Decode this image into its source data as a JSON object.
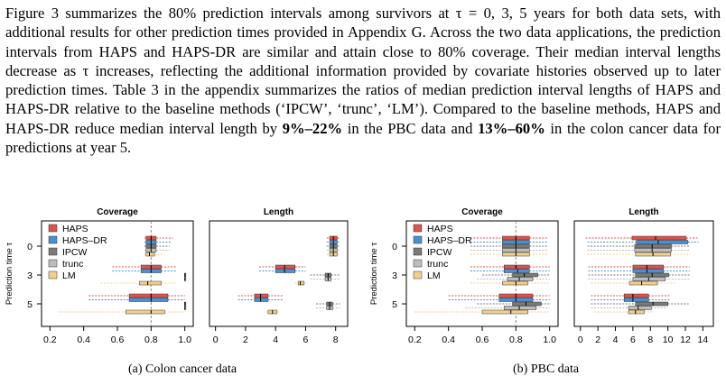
{
  "paragraph": {
    "text1": "Figure 3 summarizes the 80% prediction intervals among survivors at τ = 0, 3, 5 years for both data sets, with additional results for other prediction times provided in Appendix G. Across the two data applications, the prediction intervals from HAPS and HAPS-DR are similar and attain close to 80% coverage. Their median interval lengths decrease as τ increases, reflecting the additional information provided by covariate histories observed up to later prediction times. Table 3 in the appendix summarizes the ratios of median prediction interval lengths of HAPS and HAPS-DR relative to the baseline methods (‘IPCW’, ‘trunc’, ‘LM’). Compared to the baseline methods, HAPS and HAPS-DR reduce median interval length by ",
    "bold1": "9%–22%",
    "text2": " in the PBC data and ",
    "bold2": "13%–60%",
    "text3": " in the colon cancer data for predictions at year 5."
  },
  "captions": {
    "a": "(a) Colon cancer data",
    "b": "(b) PBC data"
  },
  "colors": {
    "HAPS": "#e0524c",
    "HAPS-DR": "#4a90d0",
    "IPCW": "#7a7a7a",
    "trunc": "#bdbdbd",
    "LM": "#f3cf8e"
  },
  "chart_data": [
    {
      "type": "boxplot",
      "title": "Coverage",
      "ylabel": "Prediction time τ",
      "yticks": [
        "0",
        "3",
        "5"
      ],
      "xticks": [
        "0.2",
        "0.4",
        "0.6",
        "0.8",
        "1.0"
      ],
      "xlim": [
        0.15,
        1.05
      ],
      "reference_line": 0.8,
      "legend": [
        "HAPS",
        "HAPS–DR",
        "IPCW",
        "trunc",
        "LM"
      ],
      "legend_position": "top-left",
      "groups": [
        {
          "tau": "0",
          "boxes": [
            {
              "method": "HAPS",
              "whisker": [
                0.76,
                0.93
              ],
              "q1": 0.77,
              "median": 0.8,
              "q3": 0.83
            },
            {
              "method": "HAPS-DR",
              "whisker": [
                0.76,
                0.92
              ],
              "q1": 0.77,
              "median": 0.8,
              "q3": 0.83
            },
            {
              "method": "IPCW",
              "whisker": [
                0.76,
                0.91
              ],
              "q1": 0.77,
              "median": 0.8,
              "q3": 0.83
            },
            {
              "method": "trunc",
              "whisker": [
                0.76,
                0.91
              ],
              "q1": 0.77,
              "median": 0.8,
              "q3": 0.83
            },
            {
              "method": "LM",
              "whisker": [
                0.76,
                0.88
              ],
              "q1": 0.77,
              "median": 0.79,
              "q3": 0.82
            }
          ]
        },
        {
          "tau": "3",
          "boxes": [
            {
              "method": "HAPS",
              "whisker": [
                0.57,
                0.95
              ],
              "q1": 0.74,
              "median": 0.8,
              "q3": 0.86
            },
            {
              "method": "HAPS-DR",
              "whisker": [
                0.57,
                0.95
              ],
              "q1": 0.74,
              "median": 0.8,
              "q3": 0.86
            },
            {
              "method": "IPCW",
              "whisker": [
                1.0,
                1.0
              ],
              "q1": 1.0,
              "median": 1.0,
              "q3": 1.0
            },
            {
              "method": "trunc",
              "whisker": [
                1.0,
                1.0
              ],
              "q1": 1.0,
              "median": 1.0,
              "q3": 1.0
            },
            {
              "method": "LM",
              "whisker": [
                0.5,
                0.95
              ],
              "q1": 0.73,
              "median": 0.78,
              "q3": 0.86
            }
          ]
        },
        {
          "tau": "5",
          "boxes": [
            {
              "method": "HAPS",
              "whisker": [
                0.43,
                1.0
              ],
              "q1": 0.67,
              "median": 0.8,
              "q3": 0.9
            },
            {
              "method": "HAPS-DR",
              "whisker": [
                0.43,
                1.0
              ],
              "q1": 0.67,
              "median": 0.8,
              "q3": 0.9
            },
            {
              "method": "IPCW",
              "whisker": [
                1.0,
                1.0
              ],
              "q1": 1.0,
              "median": 1.0,
              "q3": 1.0
            },
            {
              "method": "trunc",
              "whisker": [
                1.0,
                1.0
              ],
              "q1": 1.0,
              "median": 1.0,
              "q3": 1.0
            },
            {
              "method": "LM",
              "whisker": [
                0.25,
                1.0
              ],
              "q1": 0.65,
              "median": 0.8,
              "q3": 0.88
            }
          ]
        }
      ]
    },
    {
      "type": "boxplot",
      "title": "Length",
      "xticks": [
        "0",
        "2",
        "4",
        "6",
        "8"
      ],
      "xlim": [
        -0.4,
        8.8
      ],
      "groups": [
        {
          "tau": "0",
          "boxes": [
            {
              "method": "HAPS",
              "whisker": [
                7.4,
                8.3
              ],
              "q1": 7.6,
              "median": 7.85,
              "q3": 8.1
            },
            {
              "method": "HAPS-DR",
              "whisker": [
                7.4,
                8.3
              ],
              "q1": 7.6,
              "median": 7.85,
              "q3": 8.1
            },
            {
              "method": "IPCW",
              "whisker": [
                7.4,
                8.3
              ],
              "q1": 7.6,
              "median": 7.85,
              "q3": 8.1
            },
            {
              "method": "trunc",
              "whisker": [
                7.4,
                8.3
              ],
              "q1": 7.6,
              "median": 7.85,
              "q3": 8.1
            },
            {
              "method": "LM",
              "whisker": [
                7.4,
                8.3
              ],
              "q1": 7.6,
              "median": 7.85,
              "q3": 8.1
            }
          ]
        },
        {
          "tau": "3",
          "boxes": [
            {
              "method": "HAPS",
              "whisker": [
                2.9,
                6.0
              ],
              "q1": 4.0,
              "median": 4.6,
              "q3": 5.3
            },
            {
              "method": "HAPS-DR",
              "whisker": [
                2.9,
                6.0
              ],
              "q1": 4.0,
              "median": 4.6,
              "q3": 5.3
            },
            {
              "method": "IPCW",
              "whisker": [
                6.3,
                8.3
              ],
              "q1": 7.3,
              "median": 7.5,
              "q3": 7.7
            },
            {
              "method": "trunc",
              "whisker": [
                6.3,
                8.3
              ],
              "q1": 7.3,
              "median": 7.5,
              "q3": 7.7
            },
            {
              "method": "LM",
              "whisker": [
                5.3,
                6.1
              ],
              "q1": 5.5,
              "median": 5.65,
              "q3": 5.9
            }
          ]
        },
        {
          "tau": "5",
          "boxes": [
            {
              "method": "HAPS",
              "whisker": [
                1.5,
                4.5
              ],
              "q1": 2.6,
              "median": 3.0,
              "q3": 3.5
            },
            {
              "method": "HAPS-DR",
              "whisker": [
                1.5,
                4.5
              ],
              "q1": 2.6,
              "median": 3.0,
              "q3": 3.5
            },
            {
              "method": "IPCW",
              "whisker": [
                6.7,
                8.3
              ],
              "q1": 7.4,
              "median": 7.6,
              "q3": 7.8
            },
            {
              "method": "trunc",
              "whisker": [
                6.7,
                8.3
              ],
              "q1": 7.4,
              "median": 7.6,
              "q3": 7.8
            },
            {
              "method": "LM",
              "whisker": [
                3.3,
                4.3
              ],
              "q1": 3.5,
              "median": 3.8,
              "q3": 4.1
            }
          ]
        }
      ]
    },
    {
      "type": "boxplot",
      "title": "Coverage",
      "ylabel": "Prediction time τ",
      "yticks": [
        "0",
        "3",
        "5"
      ],
      "xticks": [
        "0.2",
        "0.4",
        "0.6",
        "0.8",
        "1.0"
      ],
      "xlim": [
        0.15,
        1.05
      ],
      "reference_line": 0.8,
      "legend": [
        "HAPS",
        "HAPS–DR",
        "IPCW",
        "trunc",
        "LM"
      ],
      "legend_position": "top-left",
      "groups": [
        {
          "tau": "0",
          "boxes": [
            {
              "method": "HAPS",
              "whisker": [
                0.53,
                0.99
              ],
              "q1": 0.72,
              "median": 0.8,
              "q3": 0.88
            },
            {
              "method": "HAPS-DR",
              "whisker": [
                0.53,
                0.99
              ],
              "q1": 0.72,
              "median": 0.8,
              "q3": 0.88
            },
            {
              "method": "IPCW",
              "whisker": [
                0.53,
                0.99
              ],
              "q1": 0.72,
              "median": 0.8,
              "q3": 0.88
            },
            {
              "method": "trunc",
              "whisker": [
                0.53,
                0.99
              ],
              "q1": 0.72,
              "median": 0.8,
              "q3": 0.88
            },
            {
              "method": "LM",
              "whisker": [
                0.53,
                0.99
              ],
              "q1": 0.72,
              "median": 0.8,
              "q3": 0.88
            }
          ]
        },
        {
          "tau": "3",
          "boxes": [
            {
              "method": "HAPS",
              "whisker": [
                0.53,
                1.0
              ],
              "q1": 0.73,
              "median": 0.8,
              "q3": 0.88
            },
            {
              "method": "HAPS-DR",
              "whisker": [
                0.53,
                1.0
              ],
              "q1": 0.73,
              "median": 0.81,
              "q3": 0.88
            },
            {
              "method": "IPCW",
              "whisker": [
                0.6,
                1.0
              ],
              "q1": 0.78,
              "median": 0.85,
              "q3": 0.93
            },
            {
              "method": "trunc",
              "whisker": [
                0.57,
                1.0
              ],
              "q1": 0.75,
              "median": 0.82,
              "q3": 0.9
            },
            {
              "method": "LM",
              "whisker": [
                0.53,
                1.0
              ],
              "q1": 0.72,
              "median": 0.8,
              "q3": 0.87
            }
          ]
        },
        {
          "tau": "5",
          "boxes": [
            {
              "method": "HAPS",
              "whisker": [
                0.4,
                1.0
              ],
              "q1": 0.7,
              "median": 0.8,
              "q3": 0.9
            },
            {
              "method": "HAPS-DR",
              "whisker": [
                0.4,
                1.0
              ],
              "q1": 0.7,
              "median": 0.8,
              "q3": 0.9
            },
            {
              "method": "IPCW",
              "whisker": [
                0.57,
                1.0
              ],
              "q1": 0.78,
              "median": 0.86,
              "q3": 0.95
            },
            {
              "method": "trunc",
              "whisker": [
                0.5,
                1.0
              ],
              "q1": 0.73,
              "median": 0.82,
              "q3": 0.92
            },
            {
              "method": "LM",
              "whisker": [
                0.2,
                1.0
              ],
              "q1": 0.6,
              "median": 0.77,
              "q3": 0.87
            }
          ]
        }
      ]
    },
    {
      "type": "boxplot",
      "title": "Length",
      "xticks": [
        "0",
        "2",
        "4",
        "6",
        "8",
        "10",
        "12",
        "14"
      ],
      "xlim": [
        -0.7,
        15.2
      ],
      "groups": [
        {
          "tau": "0",
          "boxes": [
            {
              "method": "HAPS",
              "whisker": [
                0.6,
                13.5
              ],
              "q1": 5.9,
              "median": 8.6,
              "q3": 12.1
            },
            {
              "method": "HAPS-DR",
              "whisker": [
                0.8,
                13.5
              ],
              "q1": 6.4,
              "median": 8.9,
              "q3": 12.3
            },
            {
              "method": "IPCW",
              "whisker": [
                0.8,
                12.5
              ],
              "q1": 6.2,
              "median": 8.2,
              "q3": 10.4
            },
            {
              "method": "trunc",
              "whisker": [
                0.8,
                12.5
              ],
              "q1": 6.2,
              "median": 8.2,
              "q3": 10.4
            },
            {
              "method": "LM",
              "whisker": [
                0.8,
                12.5
              ],
              "q1": 6.3,
              "median": 8.3,
              "q3": 10.3
            }
          ]
        },
        {
          "tau": "3",
          "boxes": [
            {
              "method": "HAPS",
              "whisker": [
                0.9,
                12.5
              ],
              "q1": 6.0,
              "median": 7.6,
              "q3": 9.5
            },
            {
              "method": "HAPS-DR",
              "whisker": [
                0.9,
                12.5
              ],
              "q1": 6.0,
              "median": 7.6,
              "q3": 9.5
            },
            {
              "method": "IPCW",
              "whisker": [
                0.9,
                12.5
              ],
              "q1": 6.3,
              "median": 8.2,
              "q3": 10.1
            },
            {
              "method": "trunc",
              "whisker": [
                0.9,
                12.5
              ],
              "q1": 6.0,
              "median": 7.8,
              "q3": 9.7
            },
            {
              "method": "LM",
              "whisker": [
                1.2,
                11.0
              ],
              "q1": 5.6,
              "median": 7.0,
              "q3": 8.8
            }
          ]
        },
        {
          "tau": "5",
          "boxes": [
            {
              "method": "HAPS",
              "whisker": [
                1.2,
                10.2
              ],
              "q1": 5.0,
              "median": 6.0,
              "q3": 7.8
            },
            {
              "method": "HAPS-DR",
              "whisker": [
                1.2,
                10.2
              ],
              "q1": 5.0,
              "median": 6.0,
              "q3": 7.8
            },
            {
              "method": "IPCW",
              "whisker": [
                1.2,
                12.5
              ],
              "q1": 6.3,
              "median": 8.3,
              "q3": 10.0
            },
            {
              "method": "trunc",
              "whisker": [
                1.2,
                9.8
              ],
              "q1": 5.5,
              "median": 6.6,
              "q3": 8.1
            },
            {
              "method": "LM",
              "whisker": [
                1.6,
                8.2
              ],
              "q1": 5.5,
              "median": 6.3,
              "q3": 7.3
            }
          ]
        }
      ]
    }
  ]
}
